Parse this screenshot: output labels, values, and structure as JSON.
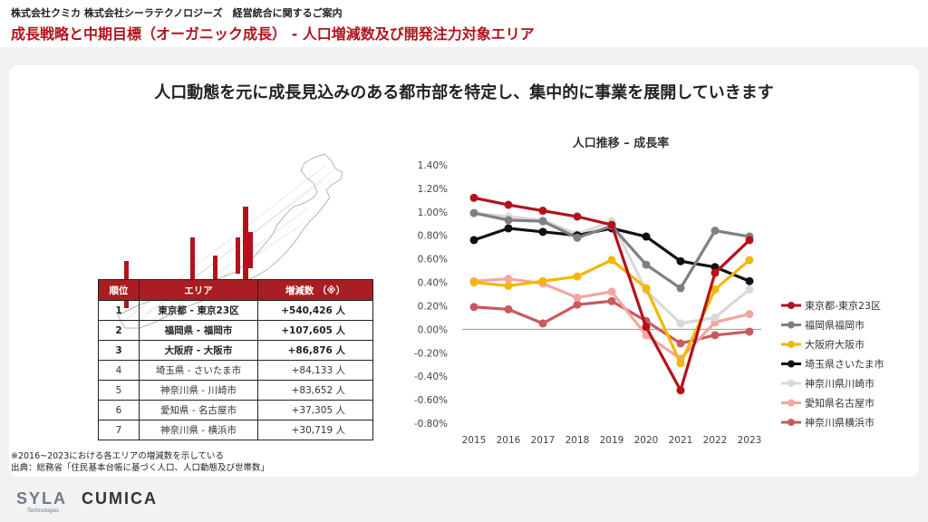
{
  "header": {
    "company_line": "株式会社クミカ 株式会社シーラテクノロジーズ　経営統合に関するご案内",
    "title": "成長戦略と中期目標（オーガニック成長） - 人口増減数及び開発注力対象エリア"
  },
  "headline": "人口動態を元に成長見込みのある都市部を特定し、集中的に事業を展開していきます",
  "table": {
    "headers": [
      "順位",
      "エリア",
      "増減数 （※）"
    ],
    "rows": [
      {
        "rank": "1",
        "area": "東京都 - 東京23区",
        "change": "+540,426 人"
      },
      {
        "rank": "2",
        "area": "福岡県 - 福岡市",
        "change": "+107,605 人"
      },
      {
        "rank": "3",
        "area": "大阪府 - 大阪市",
        "change": "+86,876 人"
      },
      {
        "rank": "4",
        "area": "埼玉県 - さいたま市",
        "change": "+84,133 人"
      },
      {
        "rank": "5",
        "area": "神奈川県 - 川崎市",
        "change": "+83,652 人"
      },
      {
        "rank": "6",
        "area": "愛知県 - 名古屋市",
        "change": "+37,305 人"
      },
      {
        "rank": "7",
        "area": "神奈川県 - 横浜市",
        "change": "+30,719 人"
      }
    ]
  },
  "footnote": {
    "line1": "※2016~2023における各エリアの増減数を示している",
    "line2": "出典：総務省「住民基本台帳に基づく人口、人口動態及び世帯数」"
  },
  "logo": {
    "syla": "SYLA",
    "syla_sub": "Technologies",
    "cumica": "CUMICA"
  },
  "map": {
    "bar_color": "#b3121b"
  },
  "chart_data": {
    "type": "line",
    "title": "人口推移 – 成長率",
    "x": [
      "2015",
      "2016",
      "2017",
      "2018",
      "2019",
      "2020",
      "2021",
      "2022",
      "2023"
    ],
    "ylim": [
      -0.8,
      1.4
    ],
    "yticks": [
      -0.8,
      -0.6,
      -0.4,
      -0.2,
      0.0,
      0.2,
      0.4,
      0.6,
      0.8,
      1.0,
      1.2,
      1.4
    ],
    "y_tick_labels": [
      "-0.80%",
      "-0.60%",
      "-0.40%",
      "-0.20%",
      "0.00%",
      "0.20%",
      "0.40%",
      "0.60%",
      "0.80%",
      "1.00%",
      "1.20%",
      "1.40%"
    ],
    "grid": false,
    "legend": "right",
    "series": [
      {
        "name": "東京都-東京23区",
        "color": "#b3121b",
        "values": [
          1.12,
          1.06,
          1.01,
          0.96,
          0.89,
          0.02,
          -0.52,
          0.48,
          0.76
        ]
      },
      {
        "name": "福岡県福岡市",
        "color": "#808080",
        "values": [
          0.99,
          0.93,
          0.92,
          0.78,
          0.88,
          0.55,
          0.35,
          0.84,
          0.79
        ]
      },
      {
        "name": "大阪府大阪市",
        "color": "#f2b705",
        "values": [
          0.4,
          0.37,
          0.41,
          0.45,
          0.59,
          0.35,
          -0.29,
          0.34,
          0.59
        ]
      },
      {
        "name": "埼玉県さいたま市",
        "color": "#111111",
        "values": [
          0.76,
          0.86,
          0.83,
          0.8,
          0.86,
          0.79,
          0.58,
          0.53,
          0.41
        ]
      },
      {
        "name": "神奈川県川崎市",
        "color": "#d9d9d9",
        "values": [
          0.99,
          0.96,
          0.93,
          0.81,
          0.92,
          0.33,
          0.05,
          0.1,
          0.34
        ]
      },
      {
        "name": "愛知県名古屋市",
        "color": "#f4a6a0",
        "values": [
          0.41,
          0.43,
          0.39,
          0.27,
          0.32,
          -0.05,
          -0.25,
          0.06,
          0.13
        ]
      },
      {
        "name": "神奈川県横浜市",
        "color": "#c85a5f",
        "values": [
          0.19,
          0.17,
          0.05,
          0.21,
          0.24,
          0.07,
          -0.12,
          -0.05,
          -0.02
        ]
      }
    ]
  }
}
